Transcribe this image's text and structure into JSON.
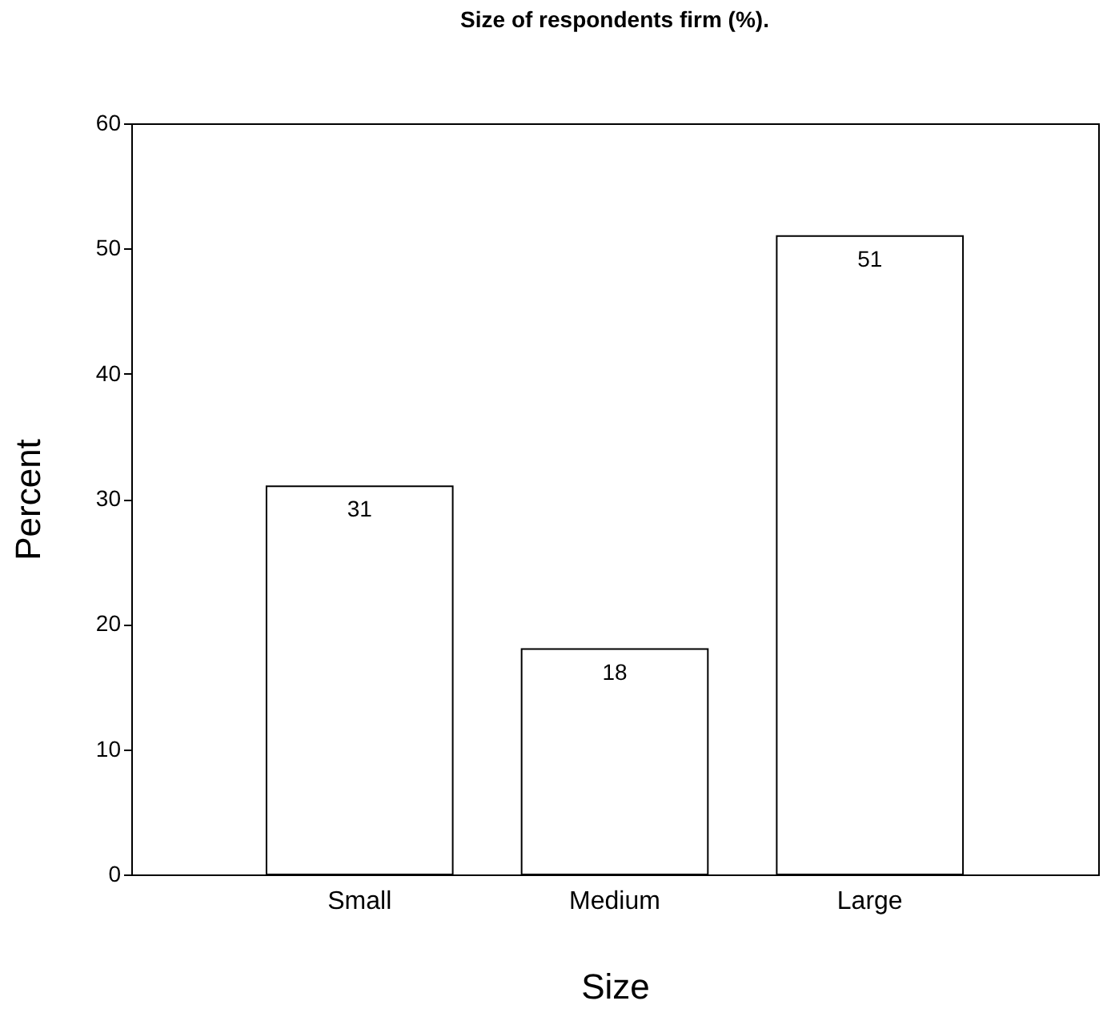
{
  "chart_data": {
    "type": "bar",
    "title": "Size of respondents firm (%).",
    "xlabel": "Size",
    "ylabel": "Percent",
    "categories": [
      "Small",
      "Medium",
      "Large"
    ],
    "values": [
      31,
      18,
      51
    ],
    "color": "#ffffff",
    "ylim": [
      0,
      60
    ],
    "yticks": [
      0,
      10,
      20,
      30,
      40,
      50,
      60
    ],
    "grid": false,
    "data_labels": true
  }
}
